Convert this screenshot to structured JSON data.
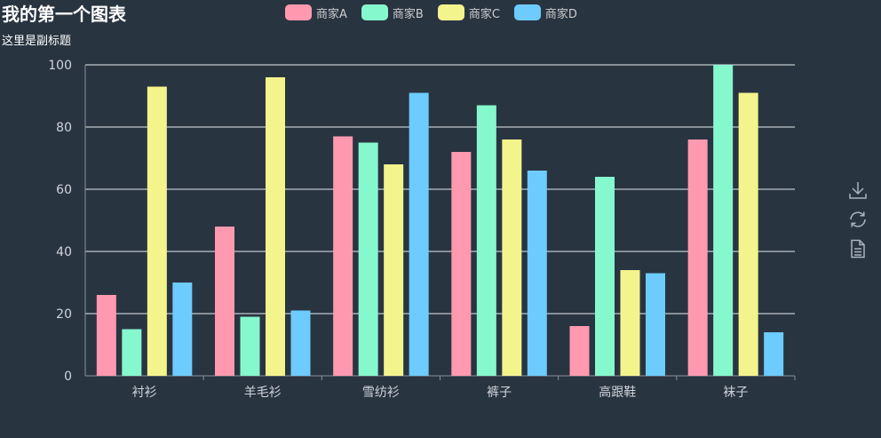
{
  "title": "我的第一个图表",
  "subtitle": "这里是副标题",
  "legend_position": "top-center",
  "toolbox": {
    "icons": [
      "download-icon",
      "refresh-icon",
      "data-view-icon"
    ]
  },
  "chart_data": {
    "type": "bar",
    "title": "我的第一个图表",
    "subtitle": "这里是副标题",
    "categories": [
      "衬衫",
      "羊毛衫",
      "雪纺衫",
      "裤子",
      "高跟鞋",
      "袜子"
    ],
    "series": [
      {
        "name": "商家A",
        "color": "#ff99b0",
        "values": [
          26,
          48,
          77,
          72,
          16,
          76
        ]
      },
      {
        "name": "商家B",
        "color": "#86f8cd",
        "values": [
          15,
          19,
          75,
          87,
          64,
          100
        ]
      },
      {
        "name": "商家C",
        "color": "#f4f48c",
        "values": [
          93,
          96,
          68,
          76,
          34,
          91
        ]
      },
      {
        "name": "商家D",
        "color": "#6dcbfd",
        "values": [
          30,
          21,
          91,
          66,
          33,
          14
        ]
      }
    ],
    "ylim": [
      0,
      100
    ],
    "yticks": [
      0,
      20,
      40,
      60,
      80,
      100
    ],
    "grid": true,
    "xlabel": "",
    "ylabel": ""
  }
}
